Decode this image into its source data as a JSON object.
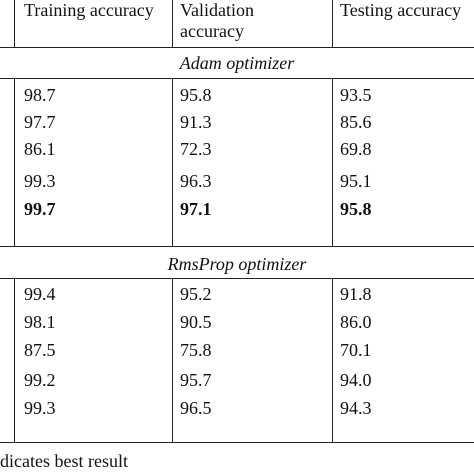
{
  "table": {
    "headers": [
      "Training accuracy",
      "Validation accuracy",
      "Testing accuracy"
    ],
    "header_validation_line1": "Validation",
    "header_validation_line2": "accuracy",
    "sections": [
      {
        "title": "Adam optimizer",
        "rows": [
          [
            "98.7",
            "95.8",
            "93.5"
          ],
          [
            "97.7",
            "91.3",
            "85.6"
          ],
          [
            "86.1",
            "72.3",
            "69.8"
          ],
          [
            "99.3",
            "96.3",
            "95.1"
          ],
          [
            "99.7",
            "97.1",
            "95.8"
          ]
        ],
        "bold_row": 4
      },
      {
        "title": "RmsProp optimizer",
        "rows": [
          [
            "99.4",
            "95.2",
            "91.8"
          ],
          [
            "98.1",
            "90.5",
            "86.0"
          ],
          [
            "87.5",
            "75.8",
            "70.1"
          ],
          [
            "99.2",
            "95.7",
            "94.0"
          ],
          [
            "99.3",
            "96.5",
            "94.3"
          ]
        ]
      }
    ],
    "footnote": "dicates best result"
  }
}
